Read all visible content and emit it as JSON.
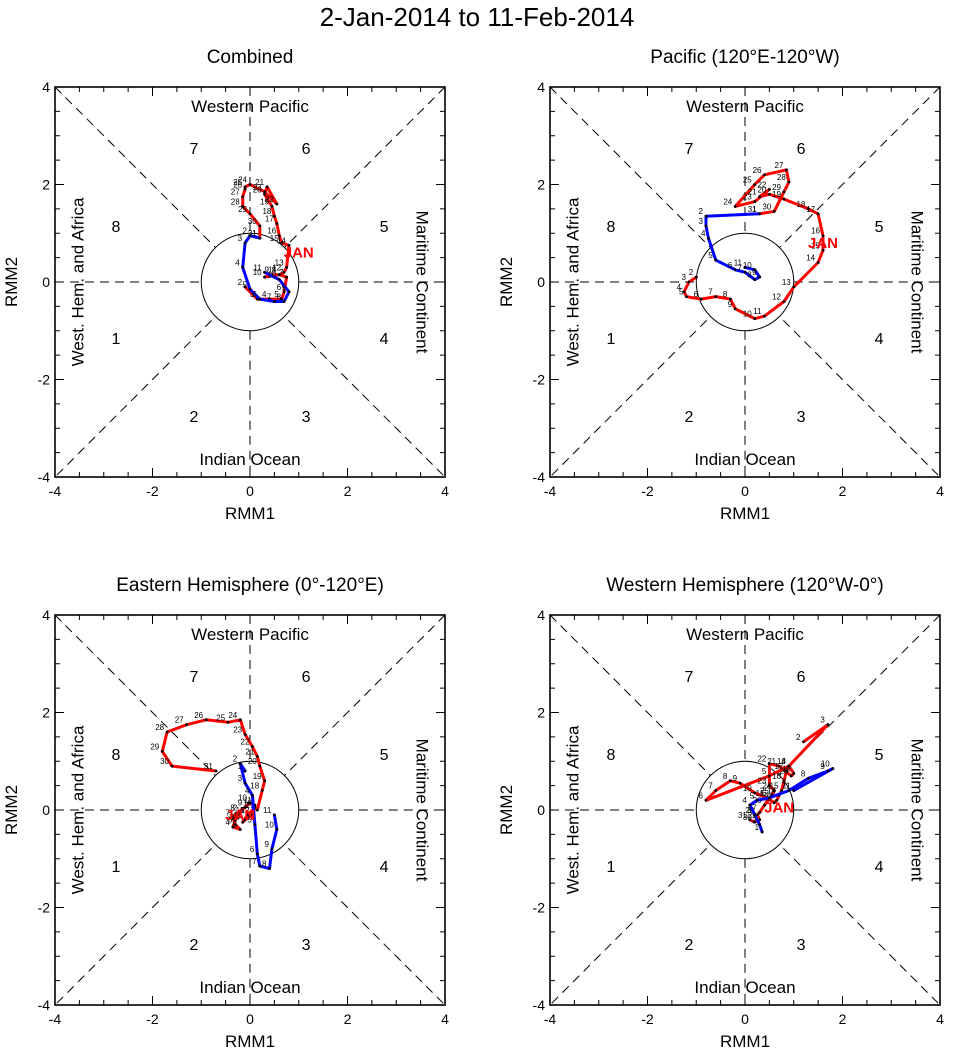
{
  "figure": {
    "title": "2-Jan-2014 to 11-Feb-2014",
    "region_labels": {
      "top": "Western Pacific",
      "bottom": "Indian Ocean",
      "left": "West. Hem. and Africa",
      "right": "Maritime Continent"
    },
    "phase_numbers": [
      "1",
      "2",
      "3",
      "4",
      "5",
      "6",
      "7",
      "8"
    ],
    "colors": {
      "january": "#ff0000",
      "february": "#0000ff",
      "axes": "#000000"
    }
  },
  "chart_data": [
    {
      "type": "line",
      "title": "Combined",
      "xlabel": "RMM1",
      "ylabel": "RMM2",
      "xlim": [
        -4,
        4
      ],
      "ylim": [
        -4,
        4
      ],
      "ticks": [
        "-4",
        "-2",
        "0",
        "2",
        "4"
      ],
      "month_label": "JAN",
      "month_label_at": [
        1.0,
        0.5
      ],
      "series": [
        {
          "name": "Jan",
          "color": "#ff0000",
          "days": [
            "2",
            "3",
            "4",
            "5",
            "6",
            "7",
            "8",
            "9",
            "10",
            "11",
            "12",
            "13",
            "14",
            "15",
            "16",
            "17",
            "18",
            "19",
            "20",
            "21",
            "22",
            "23",
            "24",
            "25",
            "26",
            "27",
            "28",
            "29",
            "30",
            "31"
          ],
          "x": [
            -0.1,
            0.15,
            0.4,
            0.65,
            0.7,
            0.75,
            0.6,
            0.45,
            0.3,
            0.6,
            0.7,
            0.75,
            0.8,
            0.65,
            0.6,
            0.55,
            0.5,
            0.45,
            0.3,
            0.35,
            0.55,
            0.3,
            0.0,
            -0.1,
            -0.1,
            -0.15,
            -0.15,
            0.0,
            0.2,
            0.2
          ],
          "y": [
            -0.1,
            -0.35,
            -0.35,
            -0.35,
            -0.2,
            0.1,
            0.15,
            0.15,
            0.1,
            0.15,
            0.2,
            0.3,
            0.75,
            0.8,
            0.95,
            1.2,
            1.35,
            1.55,
            1.8,
            1.95,
            1.6,
            1.85,
            2.0,
            1.95,
            1.9,
            1.75,
            1.55,
            1.4,
            1.15,
            0.9
          ]
        },
        {
          "name": "Feb",
          "color": "#0000ff",
          "days": [
            "1",
            "2",
            "3",
            "4",
            "5",
            "6",
            "7",
            "8",
            "9",
            "10",
            "11"
          ],
          "x": [
            0.2,
            0.0,
            -0.1,
            -0.15,
            0.0,
            0.2,
            0.5,
            0.7,
            0.8,
            0.6,
            0.3
          ],
          "y": [
            0.9,
            0.95,
            0.8,
            0.3,
            -0.15,
            -0.35,
            -0.4,
            -0.4,
            -0.2,
            0.05,
            0.2
          ]
        }
      ]
    },
    {
      "type": "line",
      "title": "Pacific (120°E-120°W)",
      "xlabel": "RMM1",
      "ylabel": "RMM2",
      "xlim": [
        -4,
        4
      ],
      "ylim": [
        -4,
        4
      ],
      "ticks": [
        "-4",
        "-2",
        "0",
        "2",
        "4"
      ],
      "month_label": "JAN",
      "month_label_at": [
        1.6,
        0.7
      ],
      "series": [
        {
          "name": "Jan",
          "color": "#ff0000",
          "days": [
            "2",
            "3",
            "4",
            "5",
            "6",
            "7",
            "8",
            "9",
            "10",
            "11",
            "12",
            "13",
            "14",
            "15",
            "16",
            "17",
            "18",
            "19",
            "20",
            "21",
            "22",
            "23",
            "24",
            "25",
            "26",
            "27",
            "28",
            "29",
            "30",
            "31"
          ],
          "x": [
            -1.0,
            -1.15,
            -1.25,
            -1.2,
            -0.9,
            -0.6,
            -0.3,
            -0.2,
            0.2,
            0.4,
            0.8,
            1.0,
            1.5,
            1.6,
            1.6,
            1.5,
            1.3,
            0.8,
            0.5,
            0.3,
            0.5,
            0.2,
            -0.2,
            0.2,
            0.4,
            0.85,
            0.9,
            0.8,
            0.6,
            0.3
          ],
          "y": [
            0.1,
            0.0,
            -0.2,
            -0.3,
            -0.35,
            -0.3,
            -0.35,
            -0.55,
            -0.75,
            -0.7,
            -0.4,
            -0.1,
            0.4,
            0.65,
            0.95,
            1.4,
            1.5,
            1.7,
            1.8,
            1.75,
            1.9,
            1.65,
            1.55,
            2.0,
            2.2,
            2.3,
            2.05,
            1.85,
            1.45,
            1.4
          ]
        },
        {
          "name": "Feb",
          "color": "#0000ff",
          "days": [
            "1",
            "2",
            "3",
            "4",
            "5",
            "6",
            "7",
            "8",
            "9",
            "10",
            "11"
          ],
          "x": [
            0.3,
            -0.8,
            -0.8,
            -0.75,
            -0.6,
            -0.2,
            0.0,
            0.2,
            0.3,
            0.2,
            0.0
          ],
          "y": [
            1.4,
            1.35,
            1.15,
            0.9,
            0.45,
            0.25,
            0.2,
            0.05,
            0.1,
            0.25,
            0.3
          ]
        }
      ]
    },
    {
      "type": "line",
      "title": "Eastern Hemisphere (0°-120°E)",
      "xlabel": "RMM1",
      "ylabel": "RMM2",
      "xlim": [
        -4,
        4
      ],
      "ylim": [
        -4,
        4
      ],
      "ticks": [
        "-4",
        "-2",
        "0",
        "2",
        "4"
      ],
      "month_label": "JAN",
      "month_label_at": [
        -0.2,
        -0.2
      ],
      "series": [
        {
          "name": "Jan",
          "color": "#ff0000",
          "days": [
            "2",
            "3",
            "4",
            "5",
            "6",
            "7",
            "8",
            "9",
            "10",
            "11",
            "12",
            "13",
            "14",
            "15",
            "16",
            "17",
            "18",
            "19",
            "20",
            "21",
            "22",
            "23",
            "24",
            "25",
            "26",
            "27",
            "28",
            "29",
            "30",
            "31"
          ],
          "x": [
            -0.2,
            -0.3,
            -0.35,
            -0.2,
            -0.3,
            -0.35,
            -0.25,
            -0.1,
            0.0,
            0.1,
            0.05,
            -0.1,
            -0.15,
            -0.05,
            0.1,
            0.15,
            0.25,
            0.3,
            0.2,
            0.15,
            0.05,
            -0.1,
            -0.2,
            -0.45,
            -0.9,
            -1.3,
            -1.7,
            -1.8,
            -1.6,
            -0.7
          ],
          "y": [
            -0.05,
            -0.2,
            -0.35,
            -0.4,
            -0.3,
            -0.15,
            -0.05,
            0.05,
            0.15,
            0.1,
            -0.1,
            -0.2,
            -0.25,
            -0.1,
            0.05,
            0.0,
            0.4,
            0.6,
            0.9,
            1.1,
            1.3,
            1.55,
            1.85,
            1.8,
            1.85,
            1.75,
            1.6,
            1.2,
            0.9,
            0.8
          ]
        },
        {
          "name": "Feb",
          "color": "#0000ff",
          "days": [
            "1",
            "2",
            "3",
            "4",
            "5",
            "6",
            "7",
            "8",
            "9",
            "10",
            "11"
          ],
          "x": [
            -0.1,
            -0.2,
            -0.1,
            0.05,
            0.1,
            0.15,
            0.2,
            0.4,
            0.45,
            0.55,
            0.5
          ],
          "y": [
            0.8,
            0.95,
            0.55,
            0.3,
            -0.3,
            -0.9,
            -1.15,
            -1.2,
            -0.8,
            -0.4,
            -0.1
          ]
        }
      ]
    },
    {
      "type": "line",
      "title": "Western Hemisphere (120°W-0°)",
      "xlabel": "RMM1",
      "ylabel": "RMM2",
      "xlim": [
        -4,
        4
      ],
      "ylim": [
        -4,
        4
      ],
      "ticks": [
        "-4",
        "-2",
        "0",
        "2",
        "4"
      ],
      "month_label": "JAN",
      "month_label_at": [
        0.7,
        -0.05
      ],
      "series": [
        {
          "name": "Jan",
          "color": "#ff0000",
          "days": [
            "2",
            "3",
            "4",
            "5",
            "6",
            "7",
            "8",
            "9",
            "10",
            "11",
            "12",
            "13",
            "14",
            "15",
            "16",
            "17",
            "18",
            "19",
            "20",
            "21",
            "22",
            "23",
            "24",
            "25",
            "26",
            "27",
            "28",
            "29",
            "30",
            "31"
          ],
          "x": [
            1.2,
            1.7,
            0.9,
            0.5,
            -0.8,
            -0.6,
            -0.3,
            -0.1,
            0.2,
            0.45,
            0.6,
            0.65,
            0.7,
            0.75,
            0.8,
            0.85,
            0.9,
            1.0,
            0.95,
            0.7,
            0.5,
            0.5,
            0.6,
            0.55,
            0.4,
            0.3,
            0.25,
            0.3,
            0.2,
            0.1
          ],
          "y": [
            1.4,
            1.75,
            0.9,
            0.7,
            0.2,
            0.4,
            0.6,
            0.55,
            0.35,
            0.25,
            0.15,
            0.2,
            0.3,
            0.4,
            0.6,
            0.8,
            0.9,
            0.75,
            0.7,
            0.9,
            0.95,
            0.5,
            0.4,
            0.3,
            0.1,
            -0.05,
            -0.1,
            -0.2,
            -0.25,
            -0.2
          ]
        },
        {
          "name": "Feb",
          "color": "#0000ff",
          "days": [
            "1",
            "2",
            "3",
            "4",
            "5",
            "6",
            "7",
            "8",
            "9",
            "10",
            "11"
          ],
          "x": [
            0.35,
            0.3,
            0.2,
            0.1,
            0.25,
            0.5,
            0.9,
            1.3,
            1.7,
            1.8,
            1.0
          ],
          "y": [
            -0.45,
            -0.3,
            -0.1,
            0.1,
            0.2,
            0.25,
            0.4,
            0.65,
            0.8,
            0.85,
            0.4
          ]
        }
      ]
    }
  ]
}
